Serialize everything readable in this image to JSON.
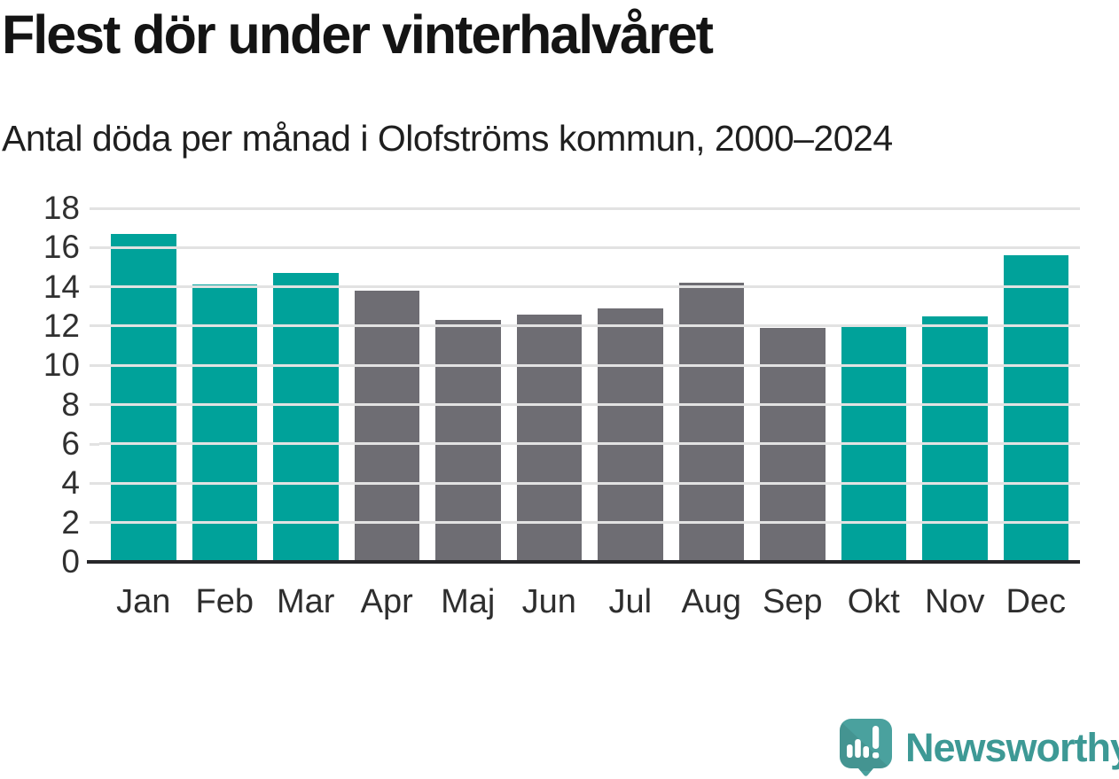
{
  "page": {
    "title": "Flest dör under vinterhalvåret",
    "subtitle": "Antal döda per månad i Olofströms kommun, 2000–2024"
  },
  "chart_data": {
    "type": "bar",
    "title": "Flest dör under vinterhalvåret",
    "subtitle": "Antal döda per månad i Olofströms kommun, 2000–2024",
    "categories": [
      "Jan",
      "Feb",
      "Mar",
      "Apr",
      "Maj",
      "Jun",
      "Jul",
      "Aug",
      "Sep",
      "Okt",
      "Nov",
      "Dec"
    ],
    "values": [
      16.7,
      14.1,
      14.7,
      13.8,
      12.3,
      12.6,
      12.9,
      14.2,
      11.9,
      12.0,
      12.5,
      15.6
    ],
    "bar_colors": [
      "highlight",
      "highlight",
      "highlight",
      "muted",
      "muted",
      "muted",
      "muted",
      "muted",
      "muted",
      "highlight",
      "highlight",
      "highlight"
    ],
    "colors": {
      "highlight": "#00a29a",
      "muted": "#6e6d73"
    },
    "xlabel": "",
    "ylabel": "",
    "ylim": [
      0,
      18
    ],
    "yticks": [
      0,
      2,
      4,
      6,
      8,
      10,
      12,
      14,
      16,
      18
    ],
    "grid": true,
    "legend": "none",
    "gridline_color": "#e2e2e2",
    "axis_line_color": "#27272a",
    "tick_label_color": "#2e2e2e"
  },
  "footer": {
    "brand": "Newsworthy",
    "logo_icon": "newsworthy-logo-icon",
    "brand_color": "#3d9995",
    "logo_bubble_color": "#4aa19e"
  }
}
